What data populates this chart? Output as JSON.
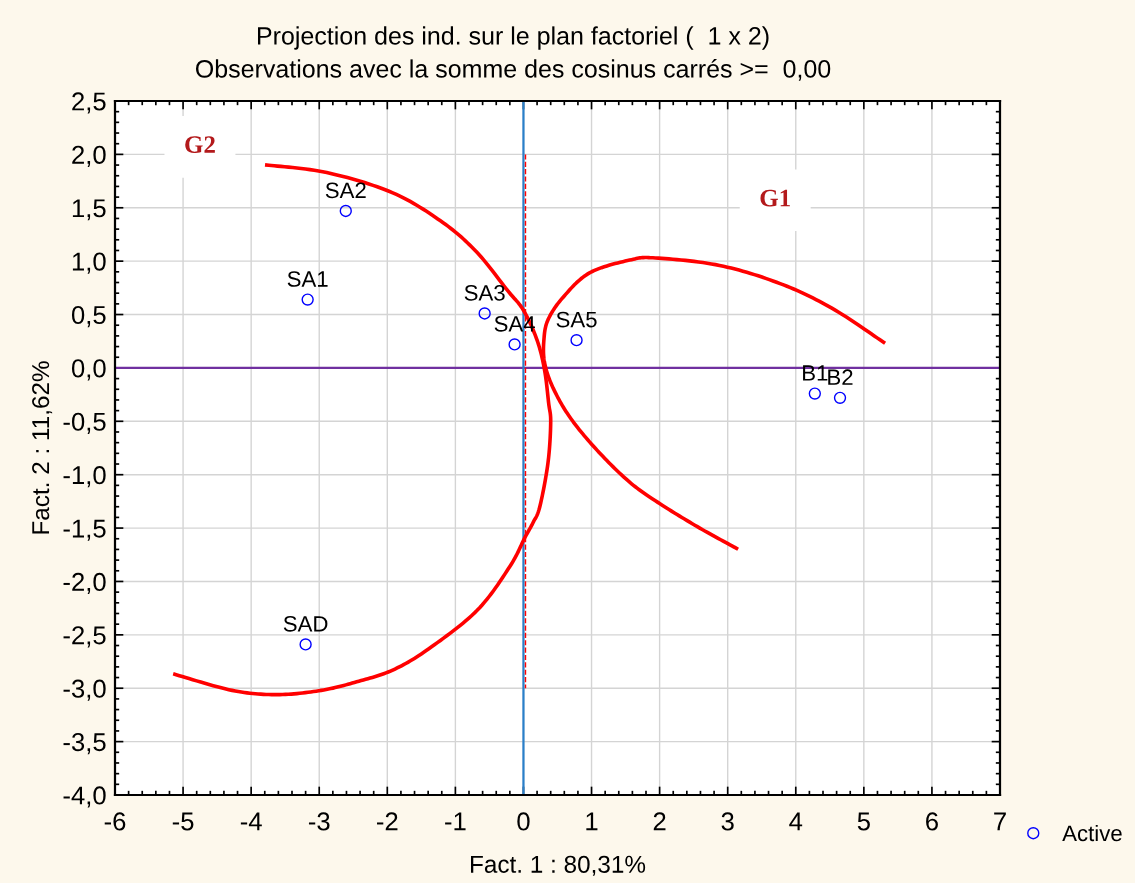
{
  "chart_data": {
    "type": "scatter",
    "title": "Projection des ind. sur le plan factoriel (  1 x 2)",
    "subtitle": "Observations avec la somme des cosinus carrés >=  0,00",
    "xlabel": "Fact. 1 : 80,31%",
    "ylabel": "Fact. 2 : 11,62%",
    "xlim": [
      -6,
      7
    ],
    "ylim": [
      -4.0,
      2.5
    ],
    "xticks": [
      -6,
      -5,
      -4,
      -3,
      -2,
      -1,
      0,
      1,
      2,
      3,
      4,
      5,
      6,
      7
    ],
    "yticks": [
      {
        "value": -4.0,
        "label": "-4,0"
      },
      {
        "value": -3.5,
        "label": "-3,5"
      },
      {
        "value": -3.0,
        "label": "-3,0"
      },
      {
        "value": -2.5,
        "label": "-2,5"
      },
      {
        "value": -2.0,
        "label": "-2,0"
      },
      {
        "value": -1.5,
        "label": "-1,5"
      },
      {
        "value": -1.0,
        "label": "-1,0"
      },
      {
        "value": -0.5,
        "label": "-0,5"
      },
      {
        "value": 0.0,
        "label": "0,0"
      },
      {
        "value": 0.5,
        "label": "0,5"
      },
      {
        "value": 1.0,
        "label": "1,0"
      },
      {
        "value": 1.5,
        "label": "1,5"
      },
      {
        "value": 2.0,
        "label": "2,0"
      },
      {
        "value": 2.5,
        "label": "2,5"
      }
    ],
    "grid": true,
    "legend": "bottom right",
    "ref_lines": [
      {
        "axis": "y",
        "value": 0,
        "color": "#7030a0"
      },
      {
        "axis": "x",
        "value": 0,
        "color": "#2a7fc9"
      }
    ],
    "annotations": [
      "G2",
      "G1"
    ],
    "series": [
      {
        "type": "line",
        "color": "#ff0000",
        "x": [
          -3.77,
          -2.89,
          -1.92,
          -1.18,
          -0.68,
          -0.24,
          0.0,
          0.2,
          0.31,
          0.37,
          0.4,
          0.36,
          0.24,
          0.14,
          0.02,
          -0.2,
          -0.68,
          -1.39,
          -1.92,
          -2.45,
          -2.97,
          -3.62,
          -4.28,
          -5.12
        ],
        "values": [
          1.9,
          1.83,
          1.64,
          1.36,
          1.08,
          0.73,
          0.54,
          0.26,
          -0.02,
          -0.33,
          -0.51,
          -0.89,
          -1.3,
          -1.45,
          -1.59,
          -1.86,
          -2.27,
          -2.63,
          -2.83,
          -2.94,
          -3.02,
          -3.06,
          -3.02,
          -2.87
        ]
      },
      {
        "type": "line",
        "color": "#ff0000",
        "x": [
          3.13,
          2.59,
          2.0,
          1.56,
          1.08,
          0.68,
          0.43,
          0.31,
          0.3,
          0.36,
          0.58,
          0.97,
          1.56,
          1.94,
          2.88,
          3.77,
          4.53,
          5.29
        ],
        "values": [
          -1.69,
          -1.5,
          -1.27,
          -1.07,
          -0.77,
          -0.46,
          -0.18,
          0.05,
          0.26,
          0.45,
          0.66,
          0.89,
          1.01,
          1.03,
          0.96,
          0.79,
          0.56,
          0.24
        ]
      },
      {
        "type": "line",
        "color": "#ff0000",
        "line_style": "dashed",
        "x": [
          0.03,
          0.03
        ],
        "values": [
          2.0,
          -3.0
        ]
      },
      {
        "name": "Active",
        "color": "#0000ff",
        "marker": "circle",
        "x": [
          -3.17,
          -2.61,
          -0.57,
          -0.13,
          0.78,
          -3.2,
          4.28,
          4.65
        ],
        "values": [
          0.64,
          1.47,
          0.51,
          0.22,
          0.26,
          -2.59,
          -0.24,
          -0.28
        ],
        "value_labels": [
          "SA1",
          "SA2",
          "SA3",
          "SA4",
          "SA5",
          "SAD",
          "B1",
          "B2"
        ]
      }
    ]
  }
}
